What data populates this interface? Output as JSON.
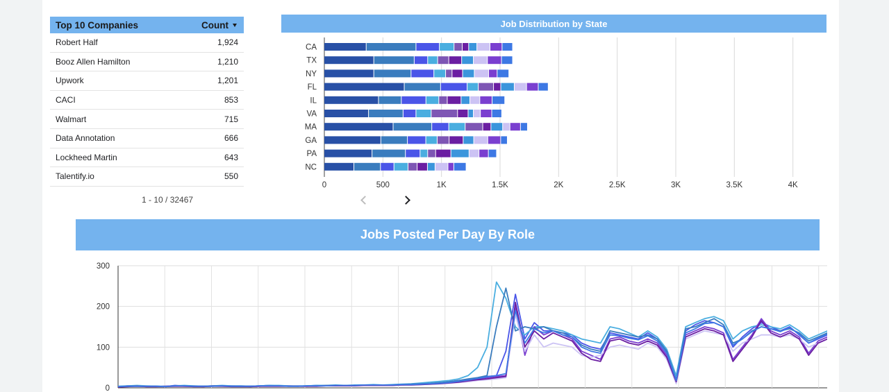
{
  "table": {
    "header": {
      "name": "Top 10 Companies",
      "count": "Count"
    },
    "rows": [
      {
        "name": "Robert Half",
        "count": "1,924"
      },
      {
        "name": "Booz Allen Hamilton",
        "count": "1,210"
      },
      {
        "name": "Upwork",
        "count": "1,201"
      },
      {
        "name": "CACI",
        "count": "853"
      },
      {
        "name": "Walmart",
        "count": "715"
      },
      {
        "name": "Data Annotation",
        "count": "666"
      },
      {
        "name": "Lockheed Martin",
        "count": "643"
      },
      {
        "name": "Talentify.io",
        "count": "550"
      }
    ],
    "pagination": "1 - 10 / 32467"
  },
  "chart_data": [
    {
      "type": "bar",
      "orientation": "horizontal",
      "stacked": true,
      "title": "Job Distribution by State",
      "categories": [
        "CA",
        "TX",
        "NY",
        "FL",
        "IL",
        "VA",
        "MA",
        "GA",
        "PA",
        "NC"
      ],
      "segments": [
        [
          360,
          425,
          425,
          685,
          465,
          380,
          590,
          485,
          410,
          255
        ],
        [
          425,
          345,
          318,
          310,
          195,
          295,
          330,
          227,
          285,
          227
        ],
        [
          200,
          115,
          195,
          227,
          210,
          110,
          145,
          157,
          125,
          115
        ],
        [
          125,
          85,
          100,
          95,
          110,
          130,
          140,
          97,
          65,
          120
        ],
        [
          70,
          95,
          55,
          130,
          72,
          225,
          150,
          102,
          68,
          78
        ],
        [
          55,
          110,
          90,
          62,
          118,
          90,
          70,
          120,
          130,
          88
        ],
        [
          70,
          100,
          100,
          115,
          75,
          45,
          100,
          90,
          155,
          65
        ],
        [
          112,
          120,
          122,
          105,
          85,
          60,
          62,
          120,
          85,
          110
        ],
        [
          103,
          120,
          73,
          100,
          105,
          97,
          90,
          110,
          80,
          50
        ],
        [
          90,
          95,
          100,
          85,
          108,
          85,
          60,
          57,
          70,
          105
        ]
      ],
      "segment_colors": [
        "#2850a6",
        "#3a7cbe",
        "#4a55e8",
        "#4aaee0",
        "#7e56b4",
        "#6b1ea2",
        "#3b95dc",
        "#ccc3f4",
        "#7a3fd0",
        "#3d78e4"
      ],
      "xlim": [
        0,
        4500
      ],
      "xticks": [
        "0",
        "500",
        "1K",
        "1.5K",
        "2K",
        "2.5K",
        "3K",
        "3.5K",
        "4K",
        "4.5K"
      ],
      "grid": true
    },
    {
      "type": "line",
      "title": "Jobs Posted Per Day By  Role",
      "ylim": [
        0,
        300
      ],
      "yticks": [
        "0",
        "100",
        "200",
        "300"
      ],
      "grid": true,
      "x_count": 80,
      "series_colors": [
        "#4a55e8",
        "#4aaee0",
        "#7a3fd0",
        "#3a7cbe",
        "#ccc3f4",
        "#6b1ea2",
        "#3d78e4"
      ],
      "series": [
        {
          "values": [
            3,
            5,
            5,
            4,
            4,
            3,
            6,
            5,
            4,
            4,
            5,
            5,
            5,
            4,
            4,
            5,
            6,
            5,
            5,
            4,
            5,
            6,
            5,
            6,
            5,
            6,
            7,
            7,
            6,
            7,
            8,
            8,
            9,
            10,
            12,
            15,
            18,
            20,
            24,
            28,
            30,
            90,
            230,
            120,
            160,
            140,
            140,
            135,
            130,
            110,
            100,
            95,
            135,
            130,
            125,
            120,
            135,
            120,
            90,
            20,
            140,
            155,
            165,
            160,
            150,
            100,
            125,
            145,
            160,
            150,
            140,
            150,
            130,
            110,
            120,
            130,
            140,
            150,
            140,
            10
          ]
        },
        {
          "values": [
            4,
            5,
            6,
            5,
            4,
            4,
            5,
            6,
            5,
            4,
            5,
            6,
            5,
            5,
            4,
            5,
            6,
            6,
            5,
            5,
            5,
            6,
            6,
            7,
            6,
            7,
            7,
            8,
            7,
            8,
            9,
            10,
            12,
            14,
            16,
            18,
            22,
            30,
            50,
            100,
            260,
            220,
            150,
            130,
            150,
            150,
            145,
            140,
            130,
            120,
            115,
            110,
            150,
            145,
            135,
            125,
            140,
            125,
            95,
            30,
            150,
            160,
            170,
            175,
            165,
            120,
            140,
            150,
            155,
            150,
            145,
            155,
            140,
            120,
            130,
            140,
            150,
            160,
            150,
            20
          ]
        },
        {
          "values": [
            2,
            4,
            4,
            3,
            3,
            4,
            5,
            4,
            4,
            3,
            4,
            5,
            4,
            4,
            3,
            4,
            5,
            5,
            4,
            4,
            4,
            5,
            5,
            5,
            5,
            6,
            6,
            6,
            6,
            7,
            7,
            8,
            9,
            10,
            12,
            14,
            16,
            20,
            22,
            25,
            28,
            30,
            200,
            80,
            150,
            130,
            140,
            130,
            120,
            90,
            80,
            70,
            120,
            125,
            115,
            110,
            120,
            110,
            80,
            15,
            130,
            140,
            150,
            145,
            135,
            70,
            100,
            130,
            170,
            140,
            130,
            140,
            125,
            85,
            115,
            125,
            135,
            145,
            130,
            15
          ]
        },
        {
          "values": [
            3,
            4,
            5,
            4,
            4,
            3,
            5,
            5,
            4,
            4,
            5,
            5,
            4,
            4,
            4,
            5,
            5,
            5,
            4,
            4,
            5,
            5,
            6,
            6,
            6,
            6,
            7,
            7,
            7,
            7,
            8,
            9,
            10,
            11,
            13,
            15,
            18,
            22,
            25,
            30,
            150,
            245,
            140,
            150,
            145,
            150,
            140,
            135,
            125,
            105,
            95,
            90,
            140,
            135,
            130,
            125,
            130,
            120,
            90,
            20,
            145,
            150,
            160,
            170,
            155,
            110,
            120,
            140,
            150,
            145,
            140,
            145,
            135,
            115,
            125,
            135,
            140,
            150,
            145,
            15
          ]
        },
        {
          "values": [
            3,
            3,
            4,
            4,
            3,
            3,
            4,
            4,
            3,
            3,
            4,
            4,
            4,
            3,
            3,
            4,
            4,
            4,
            4,
            4,
            4,
            4,
            5,
            5,
            5,
            5,
            6,
            6,
            6,
            6,
            7,
            7,
            8,
            9,
            10,
            11,
            13,
            15,
            18,
            20,
            22,
            25,
            180,
            90,
            130,
            100,
            110,
            105,
            100,
            80,
            75,
            80,
            100,
            105,
            100,
            95,
            110,
            100,
            70,
            10,
            120,
            130,
            140,
            135,
            130,
            90,
            110,
            120,
            130,
            130,
            125,
            130,
            120,
            100,
            110,
            120,
            125,
            130,
            120,
            5
          ]
        },
        {
          "values": [
            2,
            3,
            4,
            3,
            3,
            3,
            4,
            4,
            3,
            3,
            4,
            4,
            3,
            3,
            3,
            4,
            4,
            4,
            4,
            4,
            4,
            4,
            5,
            5,
            5,
            5,
            6,
            6,
            6,
            6,
            7,
            7,
            8,
            9,
            10,
            12,
            14,
            17,
            20,
            22,
            25,
            28,
            210,
            100,
            140,
            120,
            135,
            125,
            115,
            85,
            70,
            65,
            115,
            120,
            110,
            105,
            115,
            105,
            75,
            15,
            125,
            135,
            145,
            140,
            130,
            65,
            95,
            125,
            165,
            135,
            125,
            135,
            120,
            80,
            110,
            120,
            130,
            140,
            125,
            10
          ]
        },
        {
          "values": [
            3,
            4,
            4,
            4,
            4,
            3,
            5,
            5,
            4,
            4,
            4,
            5,
            4,
            4,
            4,
            5,
            5,
            5,
            4,
            4,
            5,
            5,
            5,
            6,
            6,
            6,
            7,
            7,
            7,
            7,
            8,
            8,
            9,
            10,
            11,
            13,
            16,
            19,
            23,
            27,
            30,
            35,
            190,
            110,
            145,
            135,
            140,
            130,
            125,
            100,
            90,
            85,
            130,
            128,
            122,
            118,
            128,
            115,
            85,
            18,
            135,
            145,
            158,
            160,
            150,
            105,
            120,
            138,
            150,
            145,
            138,
            148,
            132,
            110,
            122,
            132,
            138,
            148,
            138,
            12
          ]
        }
      ]
    }
  ]
}
